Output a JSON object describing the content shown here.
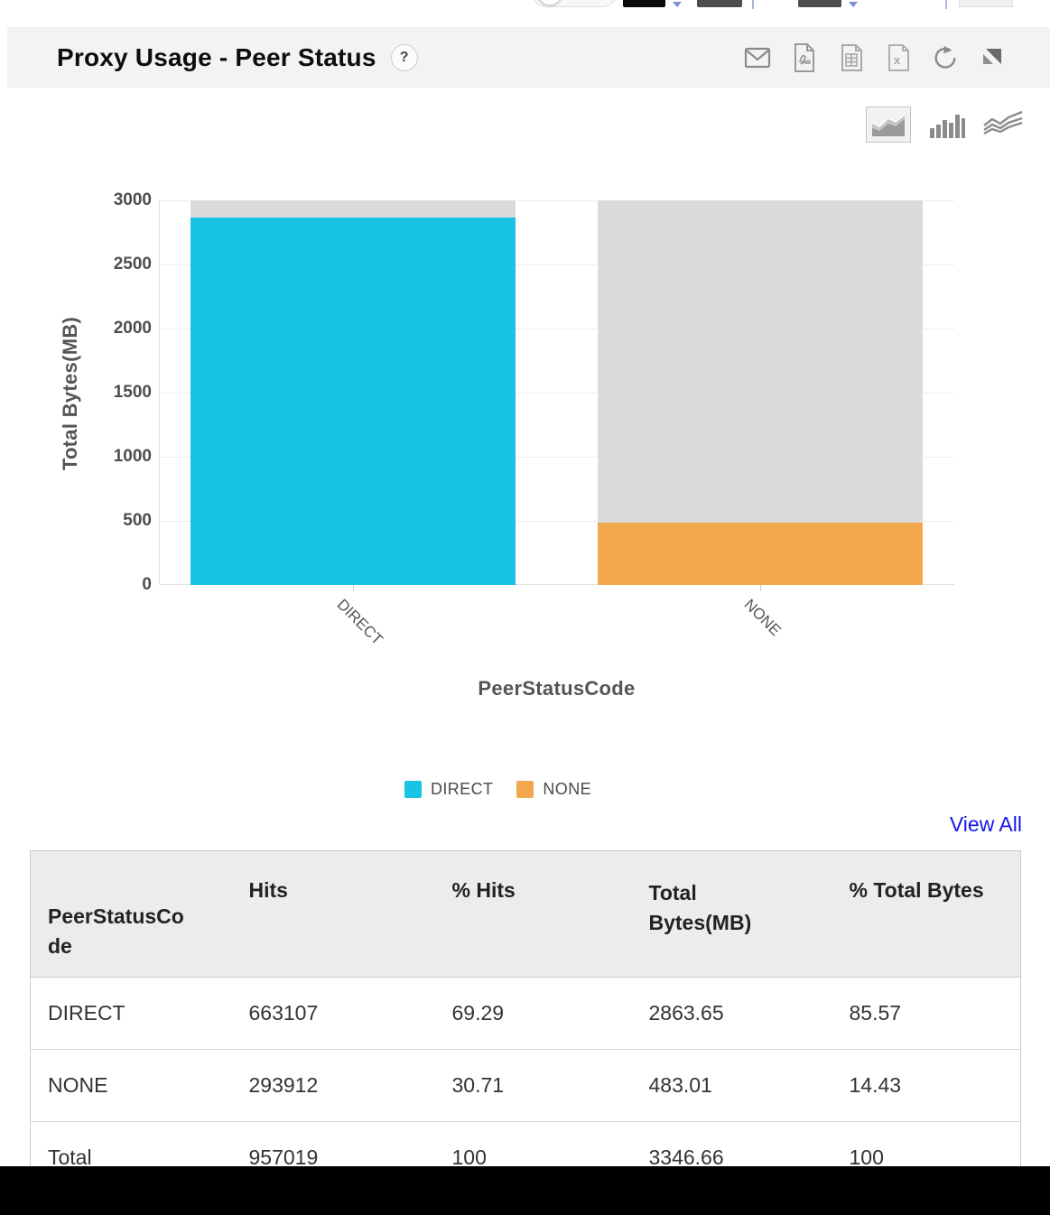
{
  "top_toolbar": {
    "controls": [
      "toggle-switch",
      "dark-button",
      "dropdown-caret",
      "dark-button",
      "dropdown-caret",
      "dark-button",
      "dropdown-caret",
      "light-button"
    ]
  },
  "header": {
    "title": "Proxy Usage - Peer Status",
    "help_label": "?",
    "icons": [
      "email-icon",
      "pdf-export-icon",
      "csv-export-icon",
      "excel-export-icon",
      "refresh-icon",
      "expand-icon"
    ]
  },
  "chart_toolbar": {
    "icons": [
      {
        "name": "area-chart-icon",
        "selected": true
      },
      {
        "name": "bar-chart-icon",
        "selected": false
      },
      {
        "name": "line-chart-icon",
        "selected": false
      }
    ]
  },
  "chart_data": {
    "type": "bar",
    "title": "",
    "categories": [
      "DIRECT",
      "NONE"
    ],
    "values": [
      2863.65,
      483.01
    ],
    "colors": [
      "#17C4E3",
      "#F4A84E"
    ],
    "track_color": "#DBDBDB",
    "track_max": 3000,
    "xlabel": "PeerStatusCode",
    "ylabel": "Total Bytes(MB)",
    "ylim": [
      0,
      3000
    ],
    "ytick_labels": [
      "3000",
      "2500",
      "2000",
      "1500",
      "1000",
      "500",
      "0"
    ],
    "grid": true,
    "legend_position": "bottom",
    "legend": [
      {
        "label": "DIRECT",
        "color": "#17C4E3"
      },
      {
        "label": "NONE",
        "color": "#F4A84E"
      }
    ]
  },
  "view_all_label": "View All",
  "link_color": "#1414EE",
  "table": {
    "headers": [
      "PeerStatusCode",
      "Hits",
      "% Hits",
      "Total Bytes(MB)",
      "% Total Bytes"
    ],
    "rows": [
      {
        "cells": [
          "DIRECT",
          "663107",
          "69.29",
          "2863.65",
          "85.57"
        ],
        "link": true
      },
      {
        "cells": [
          "NONE",
          "293912",
          "30.71",
          "483.01",
          "14.43"
        ],
        "link": true
      },
      {
        "cells": [
          "Total",
          "957019",
          "100",
          "3346.66",
          "100"
        ],
        "link": false
      }
    ]
  }
}
